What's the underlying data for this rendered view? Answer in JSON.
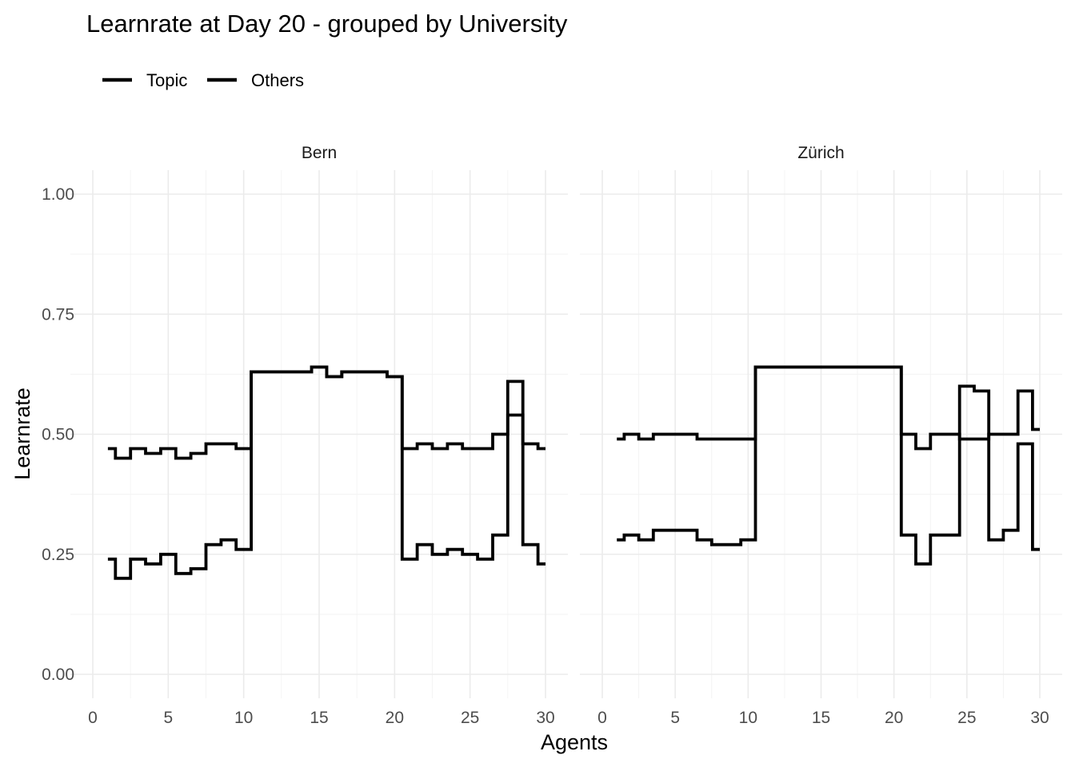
{
  "chart_data": {
    "type": "line",
    "step": "mid",
    "title": "Learnrate at Day 20 - grouped by University",
    "xlabel": "Agents",
    "ylabel": "Learnrate",
    "legend_position": "top-left",
    "legend": [
      {
        "name": "Topic"
      },
      {
        "name": "Others"
      }
    ],
    "xlim": [
      0,
      30
    ],
    "ylim": [
      0,
      1
    ],
    "x_ticks": [
      0,
      5,
      10,
      15,
      20,
      25,
      30
    ],
    "y_ticks": [
      0.0,
      0.25,
      0.5,
      0.75,
      1.0
    ],
    "x_tick_labels": [
      "0",
      "5",
      "10",
      "15",
      "20",
      "25",
      "30"
    ],
    "y_tick_labels": [
      "0.00",
      "0.25",
      "0.50",
      "0.75",
      "1.00"
    ],
    "grid": true,
    "color": "#000000",
    "panels": [
      {
        "name": "Bern",
        "x": [
          1,
          2,
          3,
          4,
          5,
          6,
          7,
          8,
          9,
          10,
          11,
          12,
          13,
          14,
          15,
          16,
          17,
          18,
          19,
          20,
          21,
          22,
          23,
          24,
          25,
          26,
          27,
          28,
          29,
          30
        ],
        "series": [
          {
            "values": [
              0.47,
              0.45,
              0.47,
              0.46,
              0.47,
              0.45,
              0.46,
              0.48,
              0.48,
              0.47,
              0.63,
              0.63,
              0.63,
              0.63,
              0.64,
              0.62,
              0.63,
              0.63,
              0.63,
              0.62,
              0.47,
              0.48,
              0.47,
              0.48,
              0.47,
              0.47,
              0.5,
              0.54,
              0.48,
              0.47
            ]
          },
          {
            "values": [
              0.24,
              0.2,
              0.24,
              0.23,
              0.25,
              0.21,
              0.22,
              0.27,
              0.28,
              0.26,
              0.63,
              0.63,
              0.63,
              0.63,
              0.64,
              0.62,
              0.63,
              0.63,
              0.63,
              0.62,
              0.24,
              0.27,
              0.25,
              0.26,
              0.25,
              0.24,
              0.29,
              0.61,
              0.27,
              0.23
            ]
          }
        ]
      },
      {
        "name": "Zürich",
        "x": [
          1,
          2,
          3,
          4,
          5,
          6,
          7,
          8,
          9,
          10,
          11,
          12,
          13,
          14,
          15,
          16,
          17,
          18,
          19,
          20,
          21,
          22,
          23,
          24,
          25,
          26,
          27,
          28,
          29,
          30
        ],
        "series": [
          {
            "values": [
              0.49,
              0.5,
              0.49,
              0.5,
              0.5,
              0.5,
              0.49,
              0.49,
              0.49,
              0.49,
              0.64,
              0.64,
              0.64,
              0.64,
              0.64,
              0.64,
              0.64,
              0.64,
              0.64,
              0.64,
              0.5,
              0.47,
              0.5,
              0.5,
              0.49,
              0.49,
              0.5,
              0.5,
              0.59,
              0.51
            ]
          },
          {
            "values": [
              0.28,
              0.29,
              0.28,
              0.3,
              0.3,
              0.3,
              0.28,
              0.27,
              0.27,
              0.28,
              0.64,
              0.64,
              0.64,
              0.64,
              0.64,
              0.64,
              0.64,
              0.64,
              0.64,
              0.64,
              0.29,
              0.23,
              0.29,
              0.29,
              0.6,
              0.59,
              0.28,
              0.3,
              0.48,
              0.26
            ]
          }
        ]
      }
    ]
  }
}
